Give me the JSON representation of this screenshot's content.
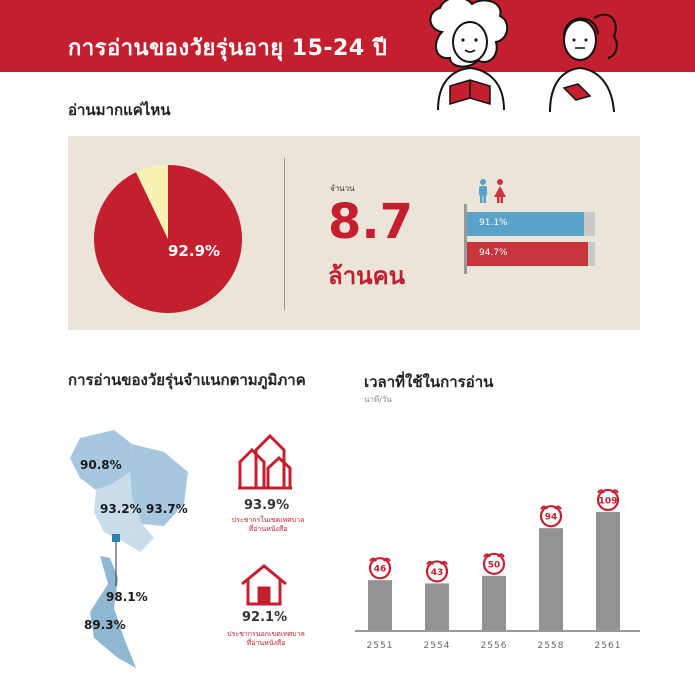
{
  "header": {
    "title": "การอ่านของวัยรุ่นอายุ 15-24 ปี"
  },
  "section1": {
    "title": "อ่านมากแค่ไหน",
    "pie_label": "92.9%",
    "count_label": "จำนวน",
    "count_value": "8.7",
    "count_unit": "ล้านคน",
    "gender_bars": [
      {
        "label": "91.1%",
        "value": 91.1,
        "color": "#5aa3c8"
      },
      {
        "label": "94.7%",
        "value": 94.7,
        "color": "#c8353d"
      }
    ]
  },
  "section2": {
    "title": "การอ่านของวัยรุ่นจำแนกตามภูมิภาค",
    "map_labels": [
      "90.8%",
      "93.2%",
      "93.7%",
      "98.1%",
      "89.3%"
    ],
    "urban": {
      "pct": "93.9%",
      "desc_line1": "ประชากรในเขตเทศบาล",
      "desc_line2": "ที่อ่านหนังสือ"
    },
    "rural": {
      "pct": "92.1%",
      "desc_line1": "ประชากรนอกเขตเทศบาล",
      "desc_line2": "ที่อ่านหนังสือ"
    }
  },
  "section3": {
    "title": "เวลาที่ใช้ในการอ่าน",
    "subtitle": "นาที/วัน"
  },
  "colors": {
    "red": "#c41f2f",
    "beige": "#ebe5d9",
    "gray_bar": "#939393",
    "pie_yellow": "#f9f3b3",
    "map_light": "#c8dcea",
    "map_mid": "#a7c7de",
    "map_dark": "#8fb7d4"
  },
  "chart_data": [
    {
      "type": "pie",
      "title": "อ่านมากแค่ไหน",
      "slices": [
        {
          "value": 92.9,
          "label": "92.9%",
          "color": "#c41f2f"
        },
        {
          "value": 7.1,
          "color": "#f9f3b3"
        }
      ]
    },
    {
      "type": "bar",
      "categories": [
        "91.1%",
        "94.7%"
      ],
      "values": [
        91.1,
        94.7
      ],
      "colors": [
        "#5aa3c8",
        "#c8353d"
      ],
      "ylim": [
        0,
        100
      ]
    },
    {
      "type": "bar",
      "title": "เวลาที่ใช้ในการอ่าน",
      "ylabel": "นาที/วัน",
      "categories": [
        "2551",
        "2554",
        "2556",
        "2558",
        "2561"
      ],
      "values": [
        46,
        43,
        50,
        94,
        109
      ],
      "ylim": [
        0,
        120
      ]
    }
  ]
}
